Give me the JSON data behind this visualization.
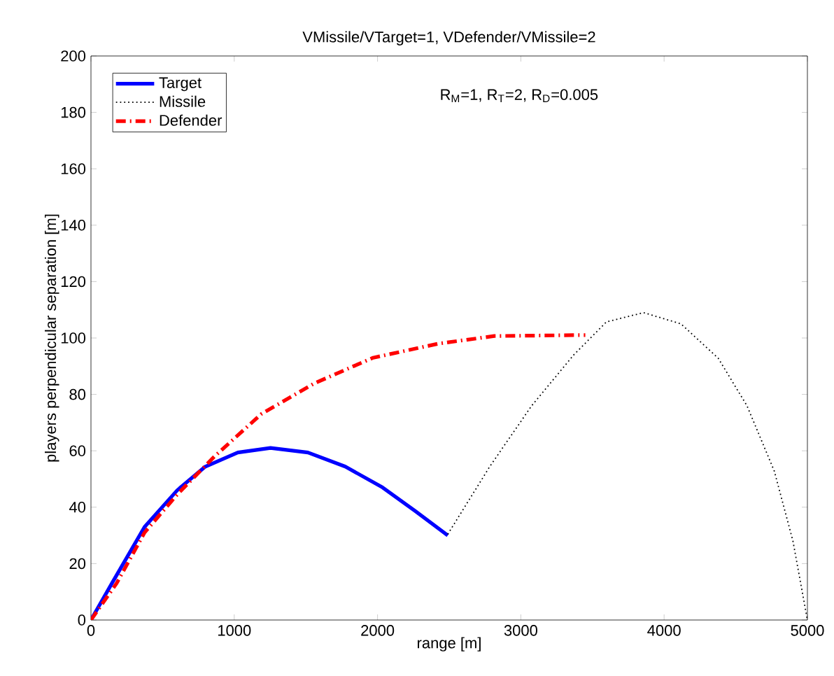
{
  "chart_data": {
    "type": "line",
    "title": "VMissile/VTarget=1, VDefender/VMissile=2",
    "xlabel": "range [m]",
    "ylabel": "players perpendicular  separation [m]",
    "annotations": [
      "R$_{M}$=1,  R$_{T}$=2,  R$_{D}$=0.005"
    ],
    "xlim": [
      0,
      5000
    ],
    "ylim": [
      0,
      200
    ],
    "xticks": [
      0,
      1000,
      2000,
      3000,
      4000,
      5000
    ],
    "yticks": [
      0,
      20,
      40,
      60,
      80,
      100,
      120,
      140,
      160,
      180,
      200
    ],
    "grid": false,
    "legend": "top left",
    "series": [
      {
        "name": "Target",
        "color": "#0000ff",
        "line_style": "solid",
        "x": [
          0,
          146,
          374,
          602,
          798,
          1025,
          1253,
          1514,
          1775,
          2035,
          2262,
          2490
        ],
        "values": [
          0,
          13,
          33,
          46,
          54.4,
          59.4,
          61,
          59.4,
          54.4,
          47,
          38.7,
          30
        ]
      },
      {
        "name": "Missile",
        "color": "#000000",
        "line_style": "dotted",
        "x": [
          2490,
          2783,
          3076,
          3369,
          3597,
          3857,
          4118,
          4378,
          4578,
          4769,
          4899,
          5000
        ],
        "values": [
          30.4,
          54.4,
          76,
          94,
          105.7,
          109,
          105,
          92.8,
          76,
          52.8,
          28,
          0
        ]
      },
      {
        "name": "Defender",
        "color": "#ff0000",
        "line_style": "dashdot",
        "x": [
          0,
          179,
          374,
          602,
          862,
          1188,
          1562,
          1969,
          2425,
          2815,
          3369,
          3450
        ],
        "values": [
          0,
          13,
          31,
          44.5,
          58,
          73,
          84,
          93,
          98,
          100.7,
          101,
          101
        ]
      }
    ]
  }
}
